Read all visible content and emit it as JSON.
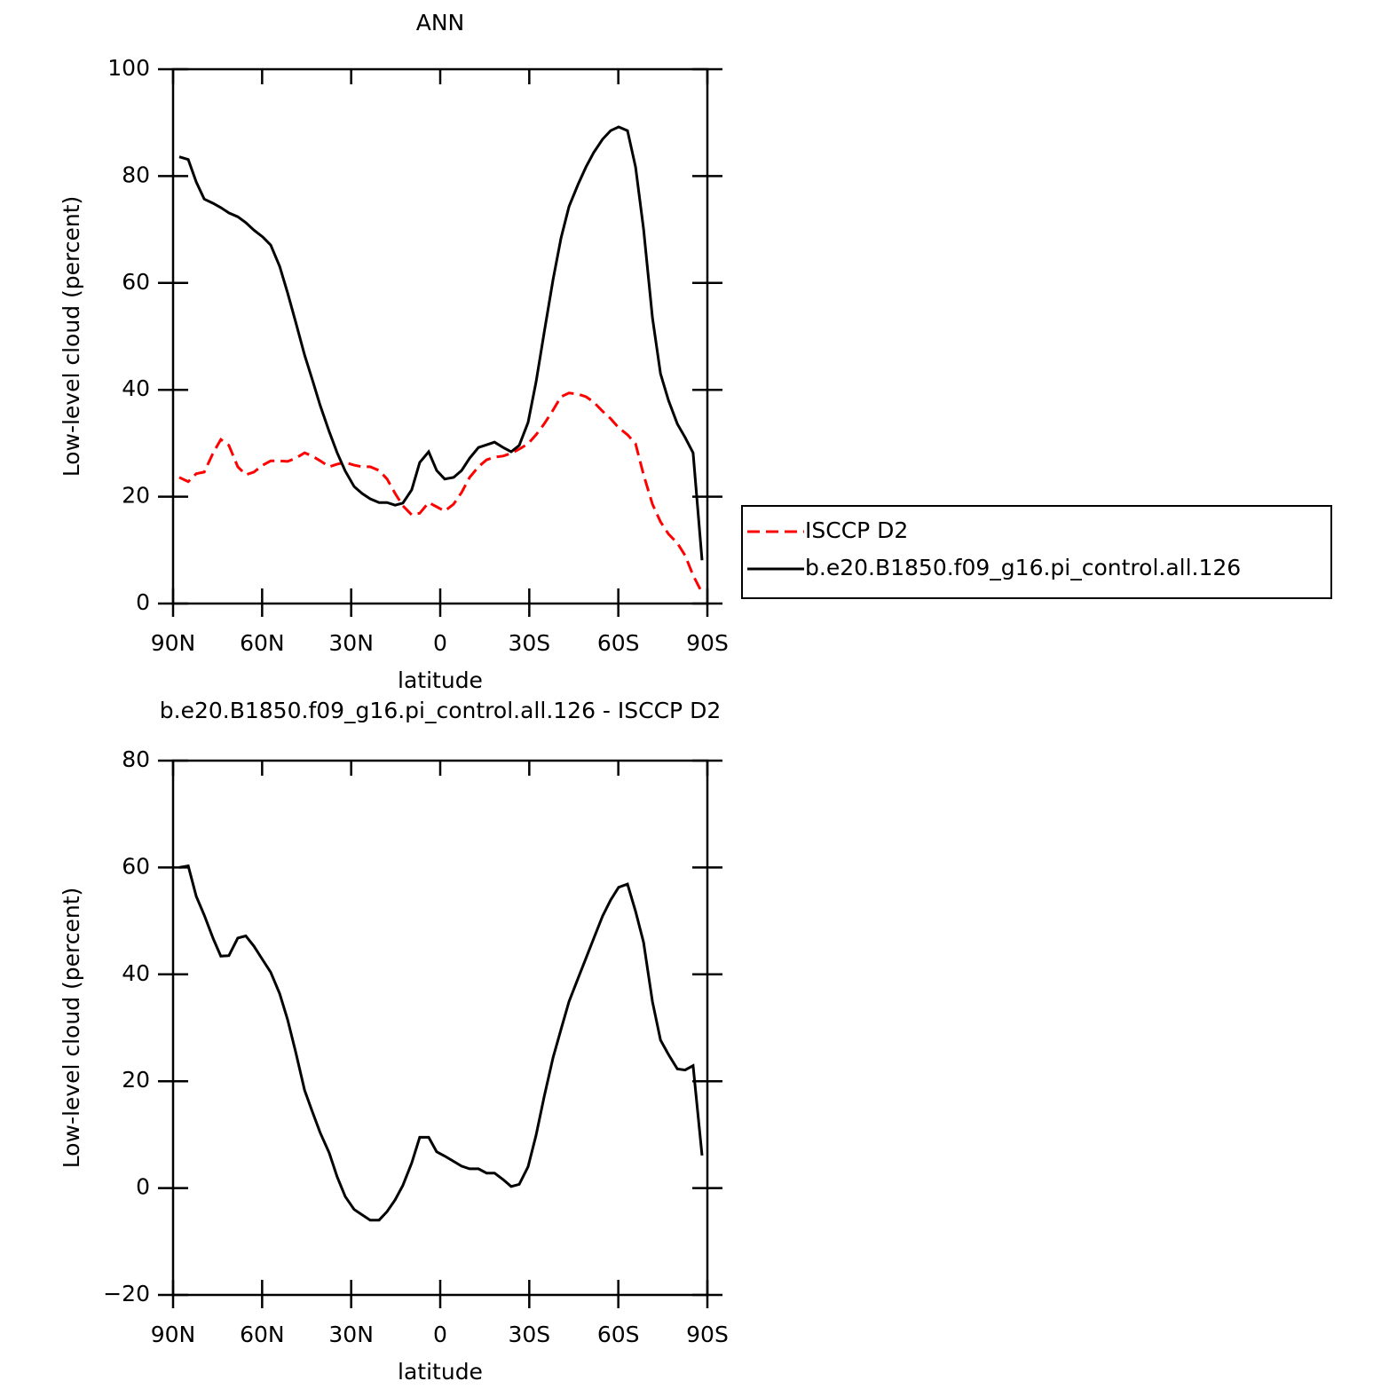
{
  "chart_data": [
    {
      "type": "line",
      "title": "ANN",
      "ylabel": "Low-level cloud (percent)",
      "xlabel": "latitude",
      "xlim": [
        90,
        -90
      ],
      "xticks": [
        {
          "value": 90,
          "label": "90N"
        },
        {
          "value": 60,
          "label": "60N"
        },
        {
          "value": 30,
          "label": "30N"
        },
        0,
        {
          "value": -30,
          "label": "30S"
        },
        {
          "value": -60,
          "label": "60S"
        },
        {
          "value": -90,
          "label": "90S"
        }
      ],
      "ylim": [
        0,
        100
      ],
      "yticks": [
        0,
        20,
        40,
        60,
        80,
        100
      ],
      "legend": "right",
      "x": [
        87.9,
        84.9,
        82.2,
        79.5,
        76.5,
        73.9,
        71.2,
        68.2,
        65.5,
        62.8,
        59.8,
        57.1,
        54.1,
        51.4,
        48.7,
        45.7,
        43.1,
        40.4,
        37.4,
        34.7,
        32.0,
        29.0,
        26.3,
        23.6,
        20.6,
        17.9,
        15.2,
        12.6,
        9.6,
        6.9,
        3.9,
        1.2,
        -1.5,
        -4.5,
        -7.2,
        -9.9,
        -12.9,
        -15.6,
        -18.3,
        -21.2,
        -23.9,
        -26.6,
        -29.6,
        -32.3,
        -35.0,
        -38.0,
        -40.7,
        -43.4,
        -46.4,
        -49.1,
        -51.7,
        -54.7,
        -57.4,
        -60.1,
        -63.1,
        -65.8,
        -68.5,
        -71.5,
        -74.2,
        -76.9,
        -79.9,
        -82.5,
        -85.2,
        -88.2
      ],
      "series": [
        {
          "name": "ISCCP D2",
          "color": "#ff0000",
          "line_style": "dashed",
          "values": [
            23.6,
            22.8,
            24.3,
            24.6,
            28.2,
            30.7,
            29.6,
            25.6,
            24.1,
            24.6,
            25.9,
            26.7,
            26.7,
            26.6,
            27.2,
            28.2,
            27.6,
            26.7,
            25.6,
            26.1,
            26.4,
            25.9,
            25.6,
            25.6,
            24.9,
            23.3,
            20.6,
            18.3,
            16.6,
            16.9,
            18.9,
            18.1,
            17.3,
            18.6,
            20.8,
            23.6,
            25.6,
            26.9,
            27.4,
            27.6,
            28.1,
            28.9,
            29.9,
            31.6,
            33.6,
            36.2,
            38.7,
            39.4,
            39.2,
            38.7,
            37.7,
            36.0,
            34.6,
            32.9,
            31.6,
            29.9,
            24.1,
            18.6,
            15.3,
            13.0,
            11.3,
            9.0,
            5.3,
            2.0
          ]
        },
        {
          "name": "b.e20.B1850.f09_g16.pi_control.all.126",
          "color": "#000000",
          "line_style": "solid",
          "values": [
            83.6,
            83.1,
            78.9,
            75.7,
            74.9,
            74.1,
            73.1,
            72.4,
            71.3,
            69.9,
            68.6,
            67.1,
            63.1,
            58.1,
            52.7,
            46.5,
            41.9,
            37.0,
            32.2,
            28.2,
            24.8,
            21.9,
            20.6,
            19.6,
            18.9,
            18.9,
            18.4,
            18.8,
            21.3,
            26.4,
            28.4,
            24.9,
            23.3,
            23.6,
            24.9,
            27.2,
            29.2,
            29.7,
            30.2,
            29.2,
            28.4,
            29.6,
            33.9,
            41.5,
            50.7,
            60.6,
            68.4,
            74.3,
            78.4,
            81.7,
            84.4,
            86.9,
            88.5,
            89.2,
            88.5,
            81.7,
            70.1,
            53.5,
            43.0,
            38.0,
            33.6,
            31.1,
            28.2,
            8.1
          ]
        }
      ]
    },
    {
      "type": "line",
      "title": "b.e20.B1850.f09_g16.pi_control.all.126 - ISCCP D2",
      "ylabel": "Low-level cloud (percent)",
      "xlabel": "latitude",
      "xlim": [
        90,
        -90
      ],
      "xticks": [
        {
          "value": 90,
          "label": "90N"
        },
        {
          "value": 60,
          "label": "60N"
        },
        {
          "value": 30,
          "label": "30N"
        },
        0,
        {
          "value": -30,
          "label": "30S"
        },
        {
          "value": -60,
          "label": "60S"
        },
        {
          "value": -90,
          "label": "90S"
        }
      ],
      "ylim": [
        -20,
        80
      ],
      "yticks": [
        {
          "value": -20,
          "label": "−20"
        },
        0,
        20,
        40,
        60,
        80
      ],
      "x": [
        87.9,
        84.9,
        82.2,
        79.5,
        76.5,
        73.9,
        71.2,
        68.2,
        65.5,
        62.8,
        59.8,
        57.1,
        54.1,
        51.4,
        48.7,
        45.7,
        43.1,
        40.4,
        37.4,
        34.7,
        32.0,
        29.0,
        26.3,
        23.6,
        20.6,
        17.9,
        15.2,
        12.6,
        9.6,
        6.9,
        3.9,
        1.2,
        -1.5,
        -4.5,
        -7.2,
        -9.9,
        -12.9,
        -15.6,
        -18.3,
        -21.2,
        -23.9,
        -26.6,
        -29.6,
        -32.3,
        -35.0,
        -38.0,
        -40.7,
        -43.4,
        -46.4,
        -49.1,
        -51.7,
        -54.7,
        -57.4,
        -60.1,
        -63.1,
        -65.8,
        -68.5,
        -71.5,
        -74.2,
        -76.9,
        -79.9,
        -82.5,
        -85.2,
        -88.2
      ],
      "series": [
        {
          "color": "#000000",
          "line_style": "solid",
          "values": [
            60.0,
            60.3,
            54.6,
            51.1,
            46.7,
            43.4,
            43.5,
            46.8,
            47.2,
            45.3,
            42.7,
            40.4,
            36.4,
            31.5,
            25.5,
            18.3,
            14.3,
            10.3,
            6.6,
            2.1,
            -1.6,
            -4.0,
            -5.0,
            -6.0,
            -6.0,
            -4.4,
            -2.2,
            0.5,
            4.7,
            9.5,
            9.5,
            6.8,
            6.0,
            5.0,
            4.1,
            3.6,
            3.6,
            2.8,
            2.8,
            1.6,
            0.3,
            0.7,
            4.0,
            9.9,
            17.1,
            24.4,
            29.7,
            34.9,
            39.2,
            43.0,
            46.7,
            50.9,
            53.9,
            56.3,
            56.9,
            51.8,
            46.0,
            34.9,
            27.7,
            25.0,
            22.3,
            22.1,
            22.9,
            6.1
          ]
        }
      ]
    }
  ]
}
